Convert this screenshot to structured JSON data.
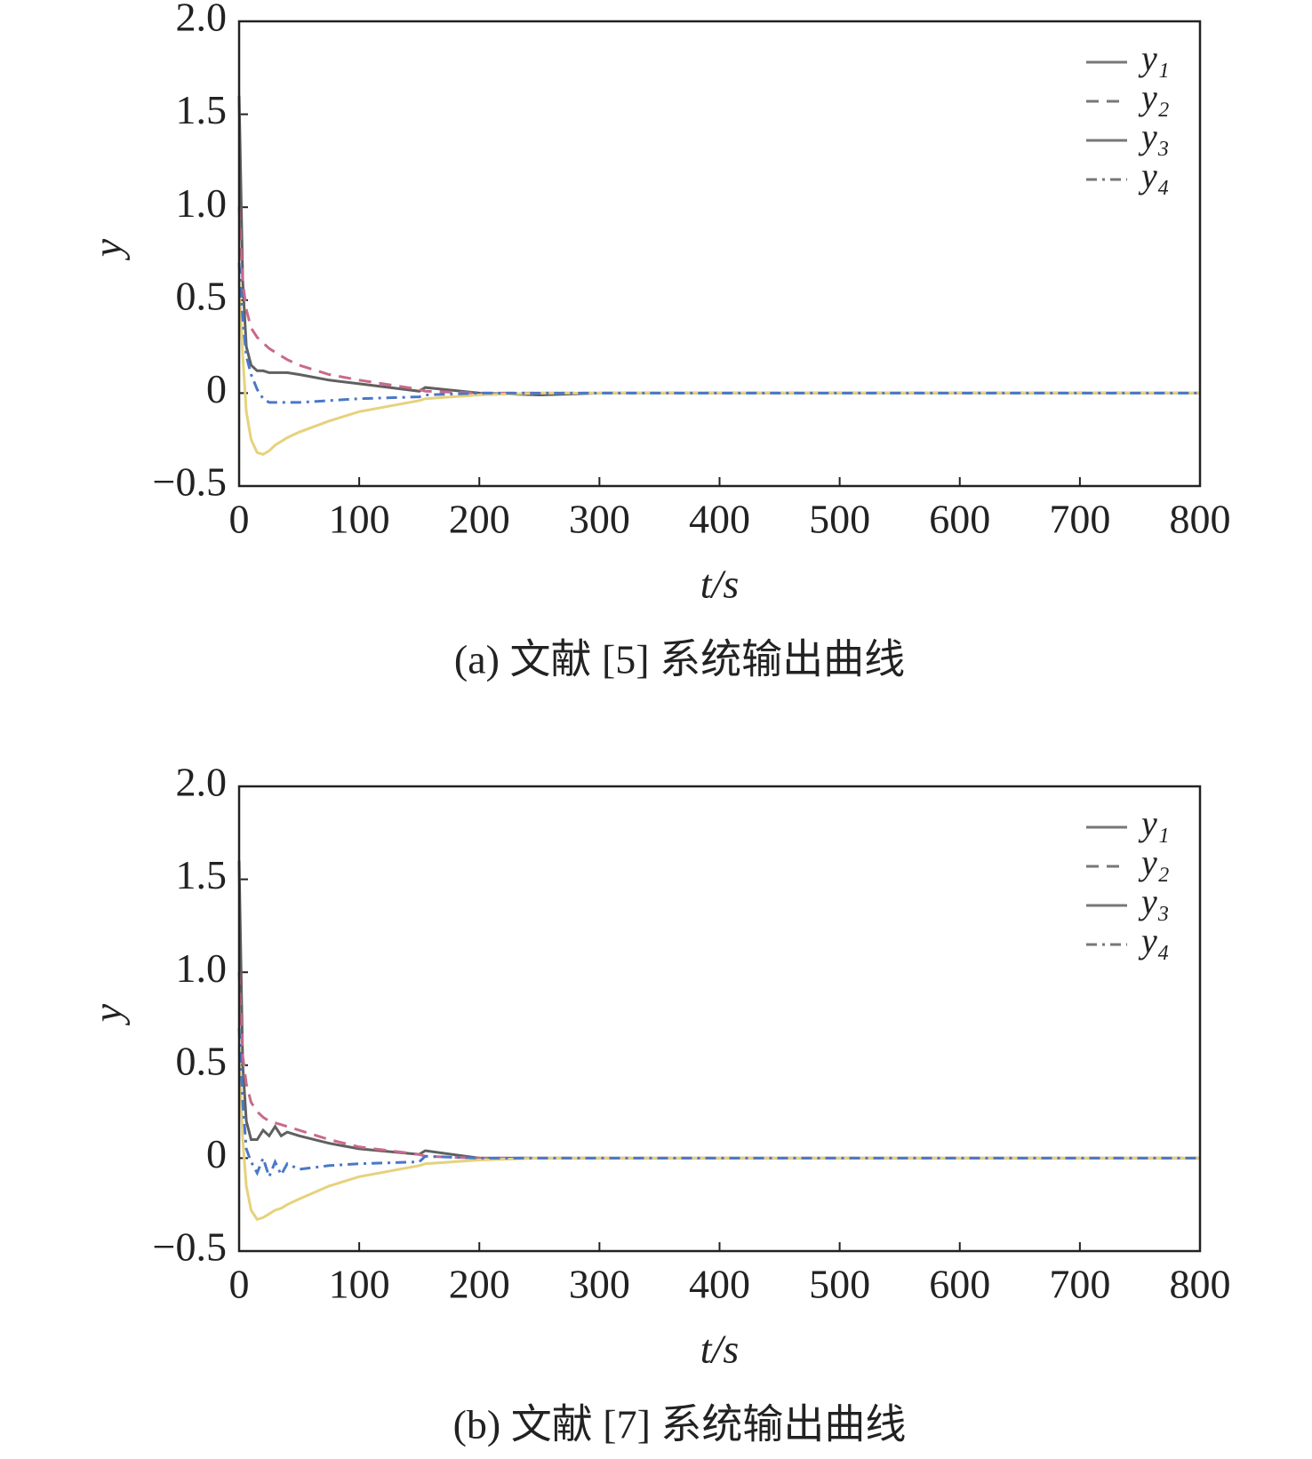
{
  "chart_data": [
    {
      "type": "line",
      "caption": "(a) 文献 [5] 系统输出曲线",
      "xlabel": "t/s",
      "ylabel": "y",
      "x": [
        0,
        3,
        6,
        10,
        15,
        20,
        25,
        30,
        35,
        40,
        50,
        75,
        100,
        150,
        155,
        200,
        250,
        300,
        400,
        500,
        600,
        700,
        800
      ],
      "series": [
        {
          "name": "y₁",
          "color": "#606060",
          "style": "solid",
          "values": [
            1.6,
            0.6,
            0.25,
            0.15,
            0.12,
            0.12,
            0.11,
            0.11,
            0.11,
            0.11,
            0.1,
            0.07,
            0.05,
            0.01,
            0.03,
            0,
            -0.01,
            0,
            0,
            0,
            0,
            0,
            0
          ]
        },
        {
          "name": "y₂",
          "color": "#c86a8c",
          "style": "dashed",
          "values": [
            1.0,
            0.6,
            0.45,
            0.35,
            0.3,
            0.27,
            0.24,
            0.22,
            0.2,
            0.18,
            0.15,
            0.1,
            0.07,
            0.02,
            0.01,
            0,
            0,
            0,
            0,
            0,
            0,
            0,
            0
          ]
        },
        {
          "name": "y₃",
          "color": "#e6d27c",
          "style": "solid",
          "values": [
            0.6,
            0.2,
            -0.1,
            -0.25,
            -0.32,
            -0.33,
            -0.31,
            -0.28,
            -0.26,
            -0.24,
            -0.21,
            -0.15,
            -0.1,
            -0.04,
            -0.03,
            -0.01,
            0,
            0,
            0,
            0,
            0,
            0,
            0
          ]
        },
        {
          "name": "y₄",
          "color": "#4a78c8",
          "style": "dashdot",
          "values": [
            0.7,
            0.4,
            0.2,
            0.1,
            0.02,
            -0.03,
            -0.05,
            -0.05,
            -0.05,
            -0.05,
            -0.05,
            -0.04,
            -0.03,
            -0.02,
            -0.01,
            0,
            0,
            0,
            0,
            0,
            0,
            0,
            0
          ]
        }
      ],
      "xlim": [
        0,
        800
      ],
      "xticks": [
        0,
        100,
        200,
        300,
        400,
        500,
        600,
        700,
        800
      ],
      "ylim": [
        -0.5,
        2
      ],
      "yticks": [
        {
          "value": 2,
          "label": "2.0"
        },
        1.5,
        {
          "value": 1,
          "label": "1.0"
        },
        0.5,
        0,
        {
          "value": -0.5,
          "label": "−0.5"
        }
      ],
      "legend": "upper right"
    },
    {
      "type": "line",
      "caption": "(b) 文献 [7] 系统输出曲线",
      "xlabel": "t/s",
      "ylabel": "y",
      "x": [
        0,
        3,
        6,
        10,
        15,
        20,
        25,
        30,
        35,
        40,
        50,
        75,
        100,
        150,
        155,
        200,
        250,
        300,
        400,
        500,
        600,
        700,
        800
      ],
      "series": [
        {
          "name": "y₁",
          "color": "#606060",
          "style": "solid",
          "values": [
            1.6,
            0.5,
            0.2,
            0.1,
            0.1,
            0.15,
            0.12,
            0.17,
            0.12,
            0.14,
            0.12,
            0.08,
            0.05,
            0.02,
            0.04,
            0,
            0,
            0,
            0,
            0,
            0,
            0,
            0
          ]
        },
        {
          "name": "y₂",
          "color": "#c86a8c",
          "style": "dashed",
          "values": [
            1.0,
            0.55,
            0.4,
            0.3,
            0.25,
            0.22,
            0.2,
            0.19,
            0.18,
            0.17,
            0.15,
            0.1,
            0.06,
            0.02,
            0.01,
            0,
            0,
            0,
            0,
            0,
            0,
            0,
            0
          ]
        },
        {
          "name": "y₃",
          "color": "#e6d27c",
          "style": "solid",
          "values": [
            0.6,
            0.1,
            -0.15,
            -0.28,
            -0.33,
            -0.32,
            -0.3,
            -0.28,
            -0.27,
            -0.25,
            -0.22,
            -0.15,
            -0.1,
            -0.04,
            -0.03,
            -0.01,
            0,
            0,
            0,
            0,
            0,
            0,
            0
          ]
        },
        {
          "name": "y₄",
          "color": "#4a78c8",
          "style": "dashdot",
          "values": [
            0.7,
            0.3,
            0.05,
            -0.02,
            -0.08,
            0,
            -0.1,
            -0.02,
            -0.09,
            -0.03,
            -0.06,
            -0.04,
            -0.03,
            -0.02,
            0.01,
            0,
            0,
            0,
            0,
            0,
            0,
            0,
            0
          ]
        }
      ],
      "xlim": [
        0,
        800
      ],
      "xticks": [
        0,
        100,
        200,
        300,
        400,
        500,
        600,
        700,
        800
      ],
      "ylim": [
        -0.5,
        2
      ],
      "yticks": [
        {
          "value": 2,
          "label": "2.0"
        },
        1.5,
        {
          "value": 1,
          "label": "1.0"
        },
        0.5,
        0,
        {
          "value": -0.5,
          "label": "−0.5"
        }
      ],
      "legend": "upper right"
    }
  ]
}
